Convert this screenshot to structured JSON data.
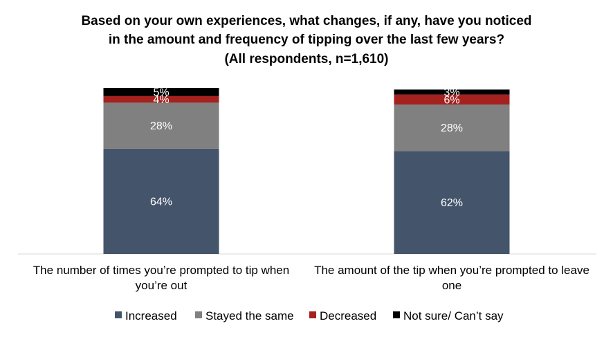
{
  "chart_data": {
    "type": "bar",
    "stacked": true,
    "title": [
      "Based on your own experiences, what changes, if any, have you noticed",
      "in the amount and frequency of tipping over the last few years?",
      "(All respondents, n=1,610)"
    ],
    "categories": [
      [
        "The number of times you’re prompted to tip when",
        "you’re out"
      ],
      [
        "The amount of the tip when you’re prompted to leave",
        "one"
      ]
    ],
    "series": [
      {
        "name": "Increased",
        "color": "#44546a",
        "values": [
          64,
          62
        ],
        "labels": [
          "64%",
          "62%"
        ]
      },
      {
        "name": "Stayed the same",
        "color": "#808080",
        "values": [
          28,
          28
        ],
        "labels": [
          "28%",
          "28%"
        ]
      },
      {
        "name": "Decreased",
        "color": "#a5211e",
        "values": [
          4,
          6
        ],
        "labels": [
          "4%",
          "6%"
        ]
      },
      {
        "name": "Not sure/ Can’t say",
        "color": "#000000",
        "values": [
          5,
          3
        ],
        "labels": [
          "5%",
          "3%"
        ]
      }
    ],
    "ylim": [
      0,
      100
    ],
    "grid": false,
    "legend": "bottom"
  }
}
